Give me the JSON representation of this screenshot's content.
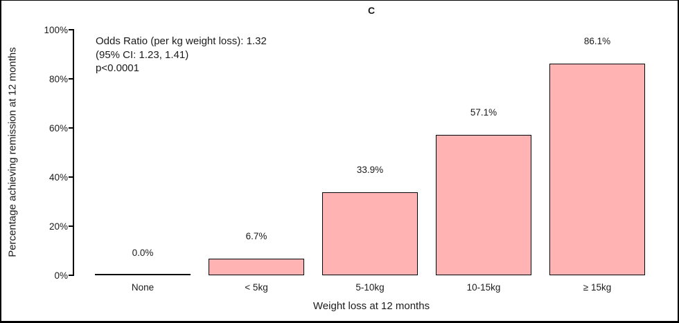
{
  "chart_data": {
    "type": "bar",
    "title": "C",
    "categories": [
      "None",
      "< 5kg",
      "5-10kg",
      "10-15kg",
      "≥ 15kg"
    ],
    "values": [
      0.0,
      6.7,
      33.9,
      57.1,
      86.1
    ],
    "value_labels": [
      "0.0%",
      "6.7%",
      "33.9%",
      "57.1%",
      "86.1%"
    ],
    "xlabel": "Weight loss at 12 months",
    "ylabel": "Percentage achieving remission at 12 months",
    "ylim": [
      0,
      100
    ],
    "yticks": [
      0,
      20,
      40,
      60,
      80,
      100
    ],
    "ytick_labels": [
      "0%",
      "20%",
      "40%",
      "60%",
      "80%",
      "100%"
    ],
    "grid": false,
    "legend": null,
    "bar_fill": "#FFB3B3",
    "bar_border": "#000000",
    "annotation_lines": [
      "Odds Ratio (per kg weight loss): 1.32",
      "(95% CI: 1.23, 1.41)",
      "p<0.0001"
    ]
  }
}
